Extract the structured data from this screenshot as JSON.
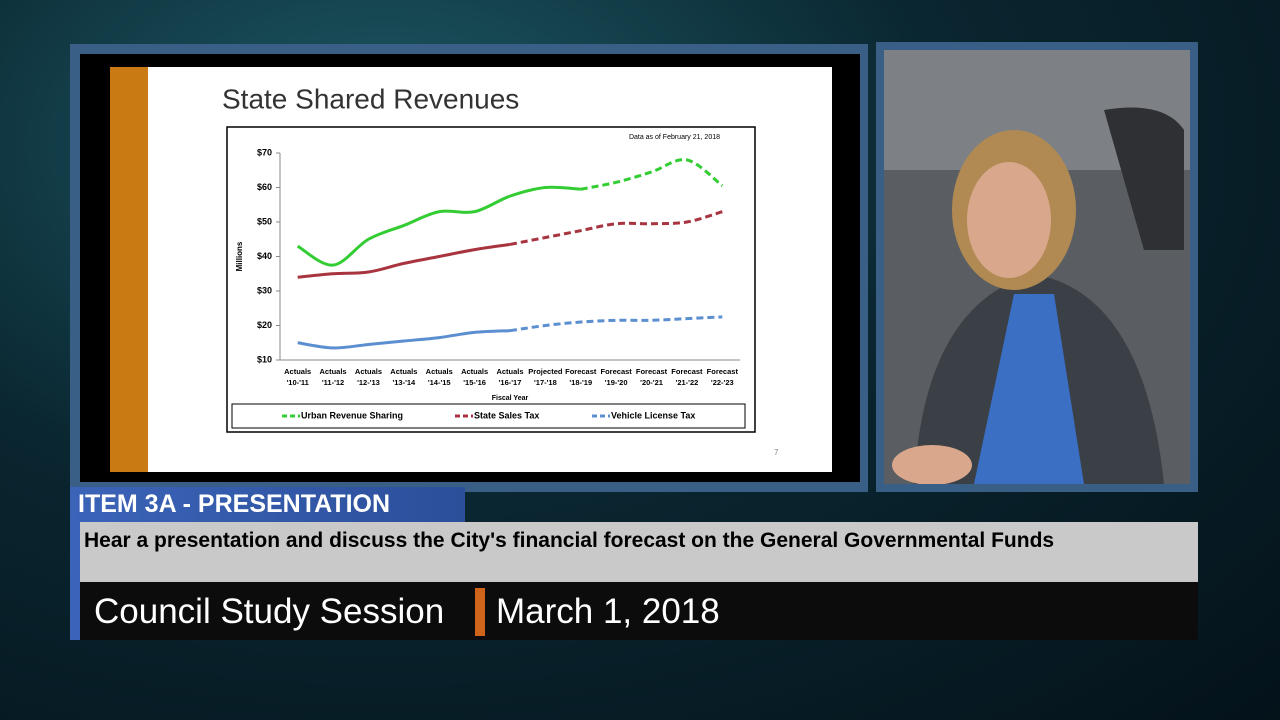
{
  "chart_data": {
    "type": "line",
    "title": "State Shared Revenues",
    "annotation": "Data as of February 21, 2018",
    "xlabel": "Fiscal Year",
    "ylabel": "Millions",
    "categories": [
      "Actuals '10-'11",
      "Actuals '11-'12",
      "Actuals '12-'13",
      "Actuals '13-'14",
      "Actuals '14-'15",
      "Actuals '15-'16",
      "Actuals '16-'17",
      "Projected '17-'18",
      "Forecast '18-'19",
      "Forecast '19-'20",
      "Forecast '20-'21",
      "Forecast '21-'22",
      "Forecast '22-'23"
    ],
    "series": [
      {
        "name": "Urban Revenue Sharing",
        "color": "#33cc33",
        "dashed_from": 8,
        "values": [
          43,
          37.5,
          45,
          49,
          53,
          53,
          57.5,
          60,
          59.5,
          61.5,
          64.5,
          68,
          60.5
        ]
      },
      {
        "name": "State Sales Tax",
        "color": "#a8343f",
        "dashed_from": 6,
        "values": [
          34,
          35,
          35.5,
          38,
          40,
          42,
          43.5,
          45.5,
          47.5,
          49.5,
          49.5,
          50,
          53
        ]
      },
      {
        "name": "Vehicle License Tax",
        "color": "#5b8fd0",
        "dashed_from": 6,
        "values": [
          15,
          13.5,
          14.5,
          15.5,
          16.5,
          18,
          18.5,
          20,
          21,
          21.5,
          21.5,
          22,
          22.5
        ]
      }
    ],
    "ylim": [
      10,
      70
    ],
    "yticks": [
      {
        "value": 10,
        "label": "$10"
      },
      {
        "value": 20,
        "label": "$20"
      },
      {
        "value": 30,
        "label": "$30"
      },
      {
        "value": 40,
        "label": "$40"
      },
      {
        "value": 50,
        "label": "$50"
      },
      {
        "value": 60,
        "label": "$60"
      },
      {
        "value": 70,
        "label": "$70"
      }
    ],
    "legend": "bottom"
  },
  "slide": {
    "page_number": "7"
  },
  "banner": {
    "item": "ITEM 3A - PRESENTATION",
    "description": "Hear a presentation and discuss the City's financial forecast on the General Governmental Funds",
    "session": "Council Study Session",
    "date": "March 1, 2018"
  }
}
